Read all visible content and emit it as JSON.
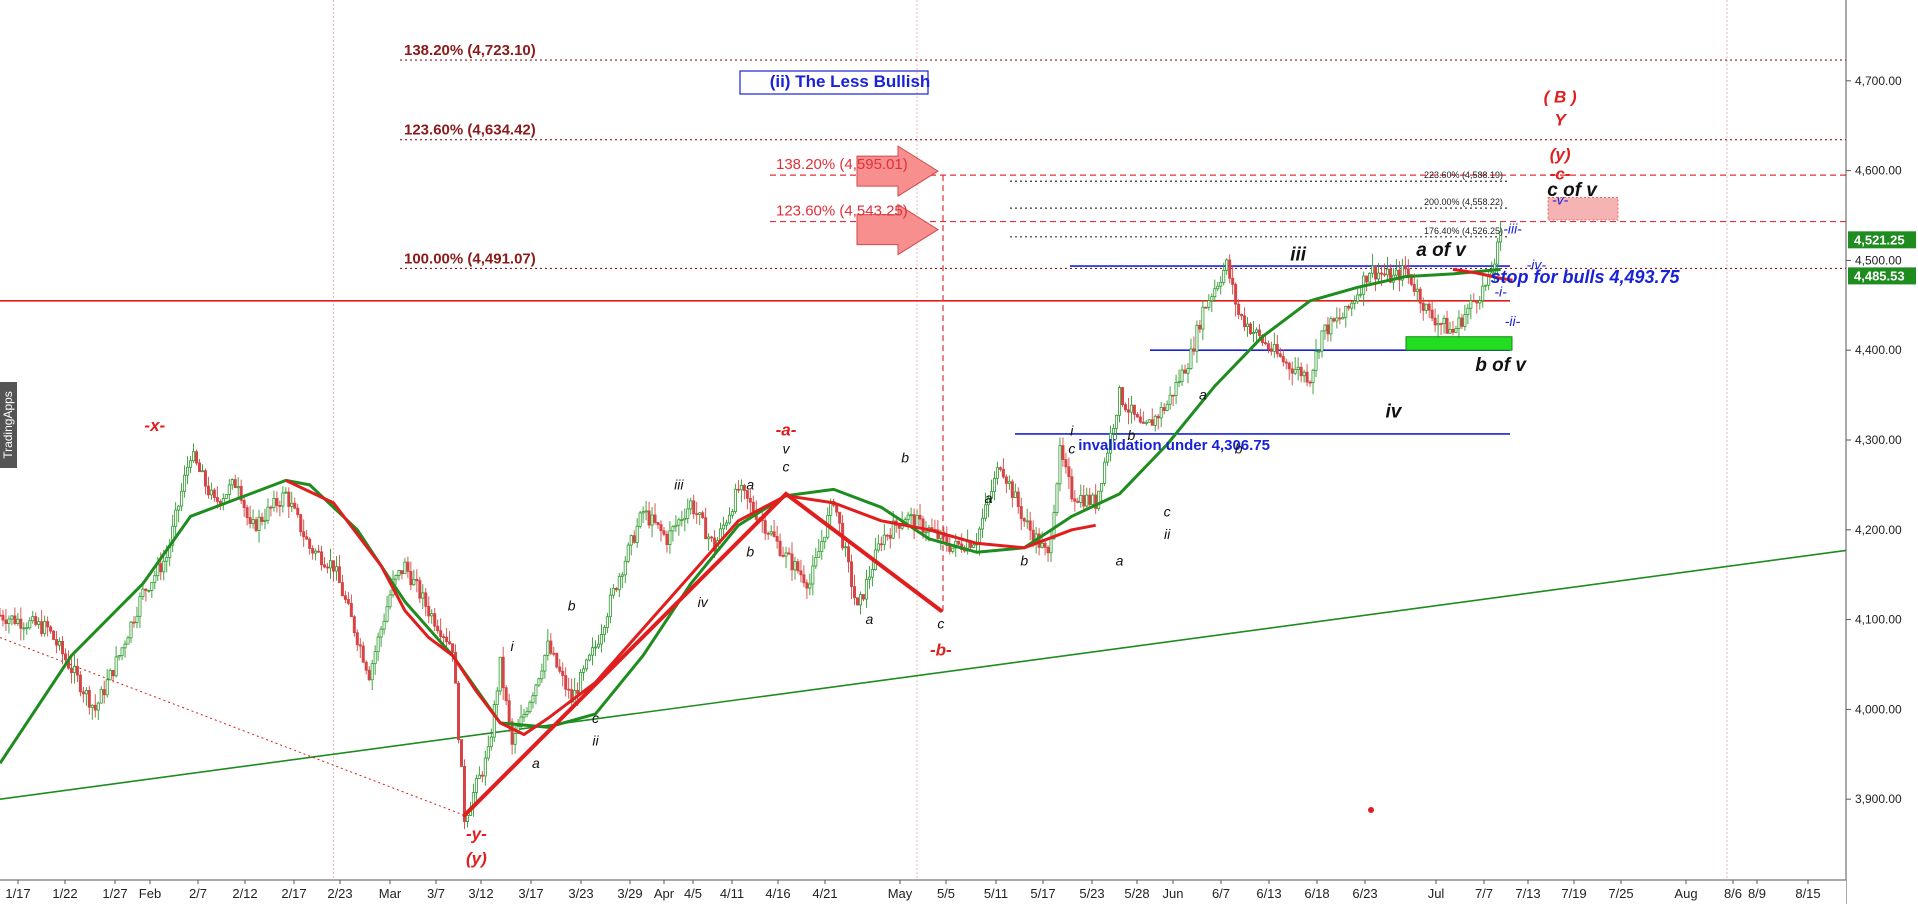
{
  "chart_data": {
    "type": "candlestick",
    "x_axis": {
      "tick_labels": [
        "1/17",
        "1/22",
        "1/27",
        "Feb",
        "2/7",
        "2/12",
        "2/17",
        "2/23",
        "Mar",
        "3/7",
        "3/12",
        "3/17",
        "3/23",
        "3/29",
        "Apr",
        "4/5",
        "4/11",
        "4/16",
        "4/21",
        "May",
        "5/5",
        "5/11",
        "5/17",
        "5/23",
        "5/28",
        "Jun",
        "6/7",
        "6/13",
        "6/18",
        "6/23",
        "Jul",
        "7/7",
        "7/13",
        "7/19",
        "7/25",
        "Aug",
        "8/6",
        "8/9",
        "8/15"
      ]
    },
    "y_axis": {
      "ylim": [
        3810,
        4790
      ],
      "tick_values": [
        3900,
        4000,
        4100,
        4200,
        4300,
        4400,
        4500,
        4600,
        4700
      ],
      "tick_labels": [
        "3,900.00",
        "4,000.00",
        "4,100.00",
        "4,200.00",
        "4,300.00",
        "4,400.00",
        "4,500.00",
        "4,600.00",
        "4,700.00"
      ]
    },
    "price_tags": [
      {
        "label": "4,521.25",
        "value": 4521.25,
        "color": "#1e8c1e"
      },
      {
        "label": "4,485.53",
        "value": 4485.53,
        "color": "#1e8c1e"
      }
    ],
    "price_path": [
      [
        0,
        4105
      ],
      [
        4,
        4090
      ],
      [
        8,
        4000
      ],
      [
        10,
        4060
      ],
      [
        12,
        4130
      ],
      [
        14,
        4170
      ],
      [
        16,
        4285
      ],
      [
        18,
        4230
      ],
      [
        20,
        4255
      ],
      [
        21,
        4200
      ],
      [
        24,
        4240
      ],
      [
        26,
        4180
      ],
      [
        28,
        4160
      ],
      [
        30,
        4080
      ],
      [
        31,
        4040
      ],
      [
        33,
        4140
      ],
      [
        34,
        4160
      ],
      [
        36,
        4110
      ],
      [
        38,
        4070
      ],
      [
        39,
        3880
      ],
      [
        41,
        3950
      ],
      [
        42,
        4050
      ],
      [
        43,
        3960
      ],
      [
        45,
        4030
      ],
      [
        46,
        4070
      ],
      [
        48,
        4010
      ],
      [
        50,
        4070
      ],
      [
        52,
        4150
      ],
      [
        54,
        4220
      ],
      [
        56,
        4190
      ],
      [
        58,
        4230
      ],
      [
        60,
        4180
      ],
      [
        62,
        4245
      ],
      [
        64,
        4210
      ],
      [
        66,
        4170
      ],
      [
        68,
        4140
      ],
      [
        70,
        4235
      ],
      [
        72,
        4110
      ],
      [
        74,
        4190
      ],
      [
        76,
        4215
      ],
      [
        78,
        4200
      ],
      [
        80,
        4180
      ],
      [
        82,
        4190
      ],
      [
        84,
        4275
      ],
      [
        86,
        4210
      ],
      [
        88,
        4170
      ],
      [
        89,
        4285
      ],
      [
        90,
        4240
      ],
      [
        92,
        4230
      ],
      [
        94,
        4350
      ],
      [
        96,
        4310
      ],
      [
        98,
        4340
      ],
      [
        100,
        4395
      ],
      [
        101,
        4445
      ],
      [
        103,
        4495
      ],
      [
        104,
        4440
      ],
      [
        106,
        4410
      ],
      [
        108,
        4385
      ],
      [
        110,
        4370
      ],
      [
        111,
        4420
      ],
      [
        113,
        4440
      ],
      [
        115,
        4490
      ],
      [
        117,
        4480
      ],
      [
        118,
        4490
      ],
      [
        120,
        4440
      ],
      [
        122,
        4420
      ],
      [
        124,
        4460
      ],
      [
        125,
        4475
      ],
      [
        126,
        4525
      ]
    ],
    "series": [
      {
        "name": "",
        "color": "#1e8c1e",
        "points": [
          [
            0,
            3940
          ],
          [
            6,
            4060
          ],
          [
            12,
            4140
          ],
          [
            16,
            4215
          ],
          [
            20,
            4235
          ],
          [
            24,
            4255
          ],
          [
            26,
            4250
          ],
          [
            30,
            4200
          ],
          [
            34,
            4120
          ],
          [
            38,
            4060
          ],
          [
            42,
            3985
          ],
          [
            46,
            3980
          ],
          [
            50,
            3995
          ],
          [
            54,
            4060
          ],
          [
            58,
            4140
          ],
          [
            62,
            4205
          ],
          [
            66,
            4238
          ],
          [
            70,
            4245
          ],
          [
            74,
            4225
          ],
          [
            78,
            4190
          ],
          [
            82,
            4175
          ],
          [
            86,
            4180
          ],
          [
            90,
            4215
          ],
          [
            94,
            4240
          ],
          [
            98,
            4295
          ],
          [
            102,
            4360
          ],
          [
            106,
            4415
          ],
          [
            110,
            4455
          ],
          [
            114,
            4470
          ],
          [
            118,
            4482
          ],
          [
            122,
            4485
          ],
          [
            126,
            4490
          ]
        ]
      },
      {
        "name": "",
        "color": "#e01e1e",
        "points": [
          [
            24,
            4255
          ],
          [
            28,
            4230
          ],
          [
            32,
            4160
          ],
          [
            34,
            4110
          ],
          [
            36,
            4080
          ],
          [
            38,
            4060
          ],
          [
            40,
            4020
          ],
          [
            42,
            3985
          ],
          [
            44,
            3972
          ],
          [
            46,
            3990
          ],
          [
            50,
            4030
          ],
          [
            54,
            4090
          ],
          [
            58,
            4150
          ],
          [
            62,
            4210
          ],
          [
            66,
            4238
          ],
          [
            70,
            4230
          ],
          [
            74,
            4210
          ],
          [
            78,
            4200
          ],
          [
            82,
            4185
          ],
          [
            86,
            4180
          ],
          [
            90,
            4200
          ],
          [
            92,
            4205
          ]
        ]
      }
    ],
    "trend_lines": [
      {
        "color": "#1e8c1e",
        "from": [
          0,
          3900
        ],
        "to": [
          155,
          4177
        ]
      },
      {
        "color": "#d42020",
        "style": "dotted",
        "from": [
          0,
          4080
        ],
        "to": [
          39,
          3882
        ]
      }
    ],
    "horizontal_levels": [
      {
        "value": 4723.1,
        "color": "#8b1a1a",
        "style": "dotted",
        "label": "138.20% (4,723.10)"
      },
      {
        "value": 4634.42,
        "color": "#8b1a1a",
        "style": "dotted",
        "label": "123.60% (4,634.42)"
      },
      {
        "value": 4491.07,
        "color": "#8b1a1a",
        "style": "dotted",
        "label": "100.00% (4,491.07)"
      },
      {
        "value": 4595.01,
        "color": "#e0303a",
        "style": "dashed",
        "label": "138.20% (4,595.01)"
      },
      {
        "value": 4543.25,
        "color": "#e0303a",
        "style": "dashed",
        "label": "123.60% (4,543.25)"
      },
      {
        "value": 4588.19,
        "color": "#333333",
        "style": "dotted",
        "label": "223.60% (4,588.19)"
      },
      {
        "value": 4558.22,
        "color": "#333333",
        "style": "dotted",
        "label": "200.00% (4,558.22)"
      },
      {
        "value": 4526.25,
        "color": "#333333",
        "style": "dotted",
        "label": "176.40% (4,526.25)"
      },
      {
        "value": 4455,
        "color": "#e01e1e",
        "style": "solid",
        "label": ""
      },
      {
        "value": 4493.75,
        "color": "#1a22d8",
        "style": "solid",
        "label": "stop for bulls 4,493.75"
      },
      {
        "value": 4400,
        "color": "#1a22d8",
        "style": "solid",
        "label": ""
      },
      {
        "value": 4306.75,
        "color": "#1a22d8",
        "style": "solid",
        "label": "invalidation under 4,306.75"
      }
    ],
    "scenario_title": "(ii) The Less Bullish",
    "wave_labels": [
      {
        "text": "-x-",
        "x": 13,
        "y": 4310,
        "style": "red"
      },
      {
        "text": "-y-",
        "x": 40,
        "y": 3855,
        "style": "red"
      },
      {
        "text": "(y)",
        "x": 40,
        "y": 3828,
        "style": "red"
      },
      {
        "text": "i",
        "x": 43,
        "y": 4065,
        "style": "black"
      },
      {
        "text": "a",
        "x": 45,
        "y": 3935,
        "style": "black"
      },
      {
        "text": "b",
        "x": 48,
        "y": 4110,
        "style": "black"
      },
      {
        "text": "c",
        "x": 50,
        "y": 3985,
        "style": "black"
      },
      {
        "text": "ii",
        "x": 50,
        "y": 3960,
        "style": "black"
      },
      {
        "text": "iii",
        "x": 57,
        "y": 4245,
        "style": "black"
      },
      {
        "text": "iv",
        "x": 59,
        "y": 4114,
        "style": "black"
      },
      {
        "text": "a",
        "x": 63,
        "y": 4245,
        "style": "black"
      },
      {
        "text": "b",
        "x": 63,
        "y": 4170,
        "style": "black"
      },
      {
        "text": "-a-",
        "x": 66,
        "y": 4305,
        "style": "red"
      },
      {
        "text": "v",
        "x": 66,
        "y": 4285,
        "style": "black"
      },
      {
        "text": "c",
        "x": 66,
        "y": 4265,
        "style": "black"
      },
      {
        "text": "b",
        "x": 76,
        "y": 4275,
        "style": "black"
      },
      {
        "text": "a",
        "x": 73,
        "y": 4095,
        "style": "black"
      },
      {
        "text": "c",
        "x": 79,
        "y": 4090,
        "style": "black"
      },
      {
        "text": "-b-",
        "x": 79,
        "y": 4060,
        "style": "red"
      },
      {
        "text": "a",
        "x": 83,
        "y": 4230,
        "style": "black"
      },
      {
        "text": "b",
        "x": 86,
        "y": 4160,
        "style": "black"
      },
      {
        "text": "i",
        "x": 90,
        "y": 4305,
        "style": "black"
      },
      {
        "text": "c",
        "x": 90,
        "y": 4285,
        "style": "black"
      },
      {
        "text": "a",
        "x": 94,
        "y": 4160,
        "style": "black"
      },
      {
        "text": "b",
        "x": 95,
        "y": 4300,
        "style": "black"
      },
      {
        "text": "c",
        "x": 98,
        "y": 4215,
        "style": "black"
      },
      {
        "text": "ii",
        "x": 98,
        "y": 4190,
        "style": "black"
      },
      {
        "text": "a",
        "x": 101,
        "y": 4345,
        "style": "black"
      },
      {
        "text": "b",
        "x": 104,
        "y": 4285,
        "style": "black"
      },
      {
        "text": "iii",
        "x": 109,
        "y": 4500,
        "style": "black-b"
      },
      {
        "text": "iv",
        "x": 117,
        "y": 4325,
        "style": "black-b"
      },
      {
        "text": "a of v",
        "x": 121,
        "y": 4505,
        "style": "black-b"
      },
      {
        "text": "b of v",
        "x": 126,
        "y": 4377,
        "style": "black-b"
      },
      {
        "text": "-i-",
        "x": 126,
        "y": 4460,
        "style": "blue"
      },
      {
        "text": "-ii-",
        "x": 127,
        "y": 4427,
        "style": "blue"
      },
      {
        "text": "-iii-",
        "x": 127,
        "y": 4530,
        "style": "blue"
      },
      {
        "text": "-iv-",
        "x": 129,
        "y": 4490,
        "style": "blue"
      },
      {
        "text": "-v-",
        "x": 131,
        "y": 4562,
        "style": "blue"
      },
      {
        "text": "c of v",
        "x": 132,
        "y": 4572,
        "style": "black-b"
      },
      {
        "text": "-c-",
        "x": 131,
        "y": 4590,
        "style": "red"
      },
      {
        "text": "(y)",
        "x": 131,
        "y": 4612,
        "style": "red"
      },
      {
        "text": "Y",
        "x": 131,
        "y": 4650,
        "style": "red"
      },
      {
        "text": "( B )",
        "x": 131,
        "y": 4676,
        "style": "red"
      }
    ],
    "watermark": "TradingApps"
  }
}
